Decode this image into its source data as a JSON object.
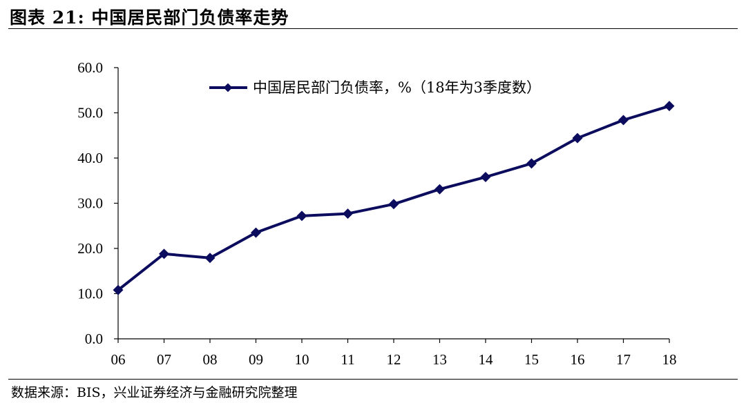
{
  "header": {
    "title": "图表 21: 中国居民部门负债率走势"
  },
  "footer": {
    "source": "数据来源：BIS，兴业证券经济与金融研究院整理"
  },
  "chart_data": {
    "type": "line",
    "categories": [
      "06",
      "07",
      "08",
      "09",
      "10",
      "11",
      "12",
      "13",
      "14",
      "15",
      "16",
      "17",
      "18"
    ],
    "series": [
      {
        "name": "中国居民部门负债率，%（18年为3季度数）",
        "values": [
          10.8,
          18.8,
          17.9,
          23.5,
          27.2,
          27.7,
          29.8,
          33.1,
          35.8,
          38.8,
          44.4,
          48.4,
          51.5
        ],
        "color": "#0c0c5e"
      }
    ],
    "yticks": [
      "0.0",
      "10.0",
      "20.0",
      "30.0",
      "40.0",
      "50.0",
      "60.0"
    ],
    "ylim": [
      0,
      60
    ],
    "grid": false,
    "legend_position": "top"
  }
}
